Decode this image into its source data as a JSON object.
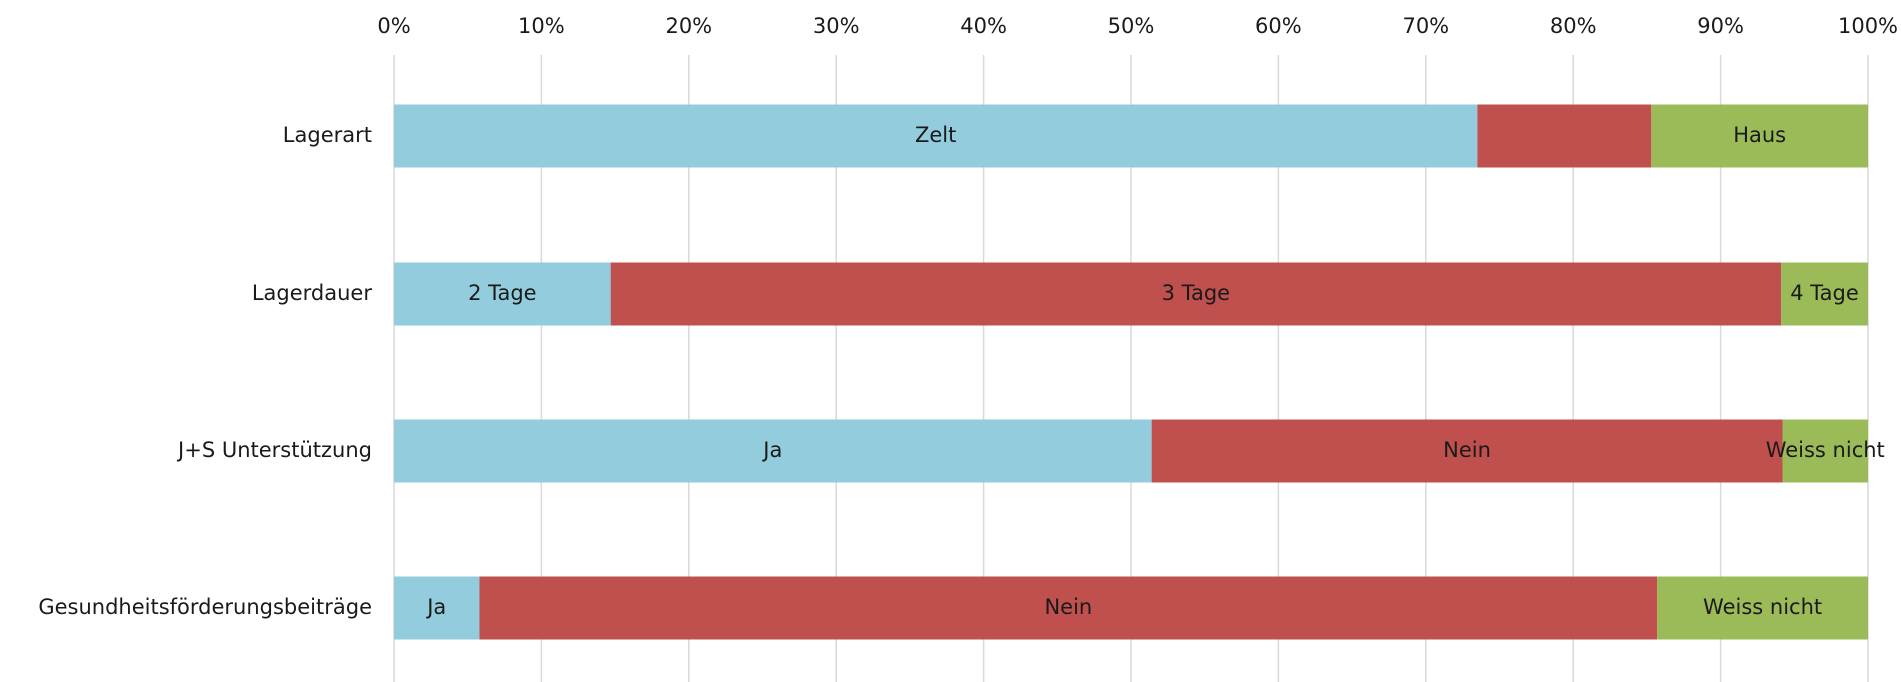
{
  "chart_data": {
    "type": "stacked_barh",
    "categories": [
      "Lagerart",
      "Lagerdauer",
      "J+S Unterstützung",
      "Gesundheitsförderungsbeiträge"
    ],
    "series": [
      {
        "color": "#93cddd",
        "values": [
          73.5,
          14.7,
          51.4,
          5.8
        ],
        "labels": [
          "Zelt",
          "2 Tage",
          "Ja",
          "Ja"
        ]
      },
      {
        "color": "#c0504d",
        "values": [
          11.8,
          79.4,
          42.8,
          79.9
        ],
        "labels": [
          null,
          "3 Tage",
          "Nein",
          "Nein"
        ]
      },
      {
        "color": "#9bbb59",
        "values": [
          14.7,
          5.9,
          5.8,
          14.3
        ],
        "labels": [
          "Haus",
          "4 Tage",
          "Weiss nicht",
          "Weiss nicht"
        ]
      }
    ],
    "xlim": [
      0,
      100
    ],
    "xticks": [
      {
        "value": 0,
        "label": "0%"
      },
      {
        "value": 10,
        "label": "10%"
      },
      {
        "value": 20,
        "label": "20%"
      },
      {
        "value": 30,
        "label": "30%"
      },
      {
        "value": 40,
        "label": "40%"
      },
      {
        "value": 50,
        "label": "50%"
      },
      {
        "value": 60,
        "label": "60%"
      },
      {
        "value": 70,
        "label": "70%"
      },
      {
        "value": 80,
        "label": "80%"
      },
      {
        "value": 90,
        "label": "90%"
      },
      {
        "value": 100,
        "label": "100%"
      }
    ],
    "grid": true
  }
}
